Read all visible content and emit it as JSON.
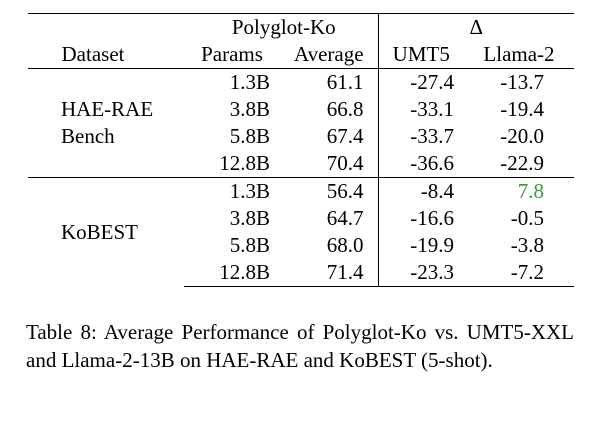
{
  "table": {
    "group_headers": {
      "polyglot": "Polyglot-Ko",
      "delta": "Δ"
    },
    "column_headers": {
      "dataset": "Dataset",
      "params": "Params",
      "average": "Average",
      "umt5": "UMT5",
      "llama2": "Llama-2"
    },
    "groups": [
      {
        "dataset_lines": [
          "HAE-RAE",
          "Bench"
        ],
        "rows": [
          {
            "params": "1.3B",
            "average": "61.1",
            "umt5": "-27.4",
            "llama2": "-13.7"
          },
          {
            "params": "3.8B",
            "average": "66.8",
            "umt5": "-33.1",
            "llama2": "-19.4"
          },
          {
            "params": "5.8B",
            "average": "67.4",
            "umt5": "-33.7",
            "llama2": "-20.0"
          },
          {
            "params": "12.8B",
            "average": "70.4",
            "umt5": "-36.6",
            "llama2": "-22.9"
          }
        ]
      },
      {
        "dataset_lines": [
          "KoBEST"
        ],
        "rows": [
          {
            "params": "1.3B",
            "average": "56.4",
            "umt5": "-8.4",
            "llama2": "7.8"
          },
          {
            "params": "3.8B",
            "average": "64.7",
            "umt5": "-16.6",
            "llama2": "-0.5"
          },
          {
            "params": "5.8B",
            "average": "68.0",
            "umt5": "-19.9",
            "llama2": "-3.8"
          },
          {
            "params": "12.8B",
            "average": "71.4",
            "umt5": "-23.3",
            "llama2": "-7.2"
          }
        ]
      }
    ],
    "highlight_color": "#3a9a34"
  },
  "caption": {
    "text": "Table 8: Average Performance of Polyglot-Ko vs. UMT5-XXL and Llama-2-13B on HAE-RAE and KoBEST (5-shot)."
  }
}
